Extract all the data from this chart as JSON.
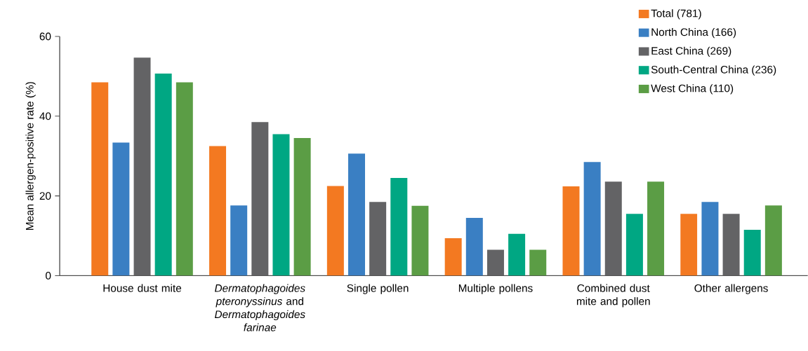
{
  "chart_data": {
    "type": "bar",
    "ylabel": "Mean allergen-positive rate (%)",
    "categories": [
      "House dust mite",
      "*Dermatophagoides pteronyssinus* and *Dermatophagoides farinae*",
      "Single pollen",
      "Multiple pollens",
      "Combined dust mite and pollen",
      "Other allergens"
    ],
    "series": [
      {
        "name": "Total (781)",
        "color": "#f37921",
        "values": [
          48.5,
          32.5,
          22.5,
          9.4,
          22.4,
          15.5
        ]
      },
      {
        "name": "North China (166)",
        "color": "#3a7fc3",
        "values": [
          33.4,
          17.6,
          30.6,
          14.5,
          28.5,
          18.5
        ]
      },
      {
        "name": "East China (269)",
        "color": "#636365",
        "values": [
          54.7,
          38.5,
          18.5,
          6.5,
          23.6,
          15.5
        ]
      },
      {
        "name": "South-Central China (236)",
        "color": "#00a783",
        "values": [
          50.7,
          35.5,
          24.5,
          10.5,
          15.5,
          11.5
        ]
      },
      {
        "name": "West China (110)",
        "color": "#5b9d45",
        "values": [
          48.5,
          34.5,
          17.5,
          6.5,
          23.6,
          17.6
        ]
      }
    ],
    "ylim": [
      0,
      60
    ],
    "yticks": [
      0,
      20,
      40,
      60
    ],
    "legend": "top right"
  }
}
